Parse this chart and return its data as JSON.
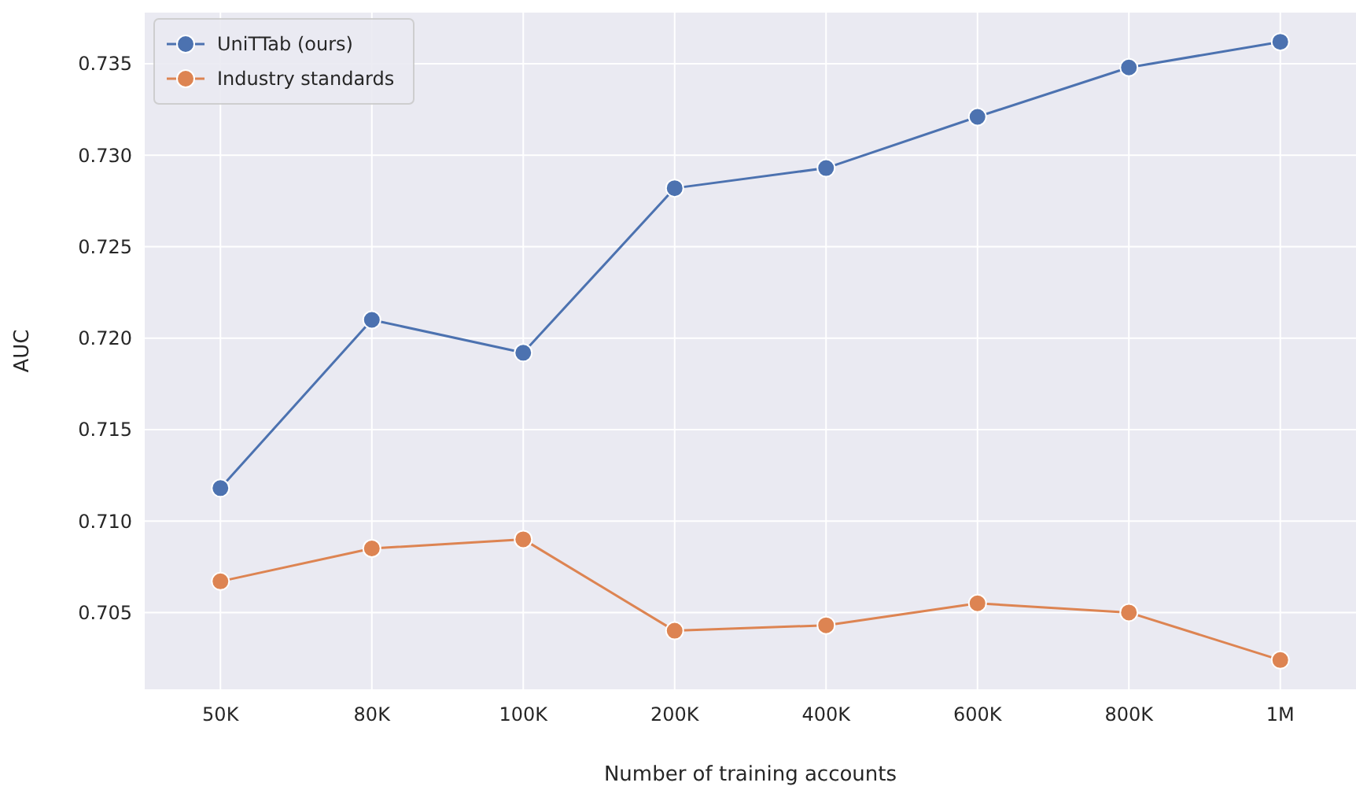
{
  "chart_data": {
    "type": "line",
    "xlabel": "Number of training accounts",
    "ylabel": "AUC",
    "categories": [
      "50K",
      "80K",
      "100K",
      "200K",
      "400K",
      "600K",
      "800K",
      "1M"
    ],
    "series": [
      {
        "name": "UniTTab (ours)",
        "color": "#4c72b0",
        "values": [
          0.7118,
          0.721,
          0.7192,
          0.7282,
          0.7293,
          0.7321,
          0.7348,
          0.7362
        ]
      },
      {
        "name": "Industry standards",
        "color": "#dd8452",
        "values": [
          0.7067,
          0.7085,
          0.709,
          0.704,
          0.7043,
          0.7055,
          0.705,
          0.7024
        ]
      }
    ],
    "ylim": [
      0.7008,
      0.7378
    ],
    "yticks": [
      {
        "value": 0.705,
        "label": "0.705"
      },
      {
        "value": 0.71,
        "label": "0.710"
      },
      {
        "value": 0.715,
        "label": "0.715"
      },
      {
        "value": 0.72,
        "label": "0.720"
      },
      {
        "value": 0.725,
        "label": "0.725"
      },
      {
        "value": 0.73,
        "label": "0.730"
      },
      {
        "value": 0.735,
        "label": "0.735"
      }
    ],
    "grid": true,
    "legend": "top left",
    "marker": "circle",
    "line_style": "solid"
  }
}
